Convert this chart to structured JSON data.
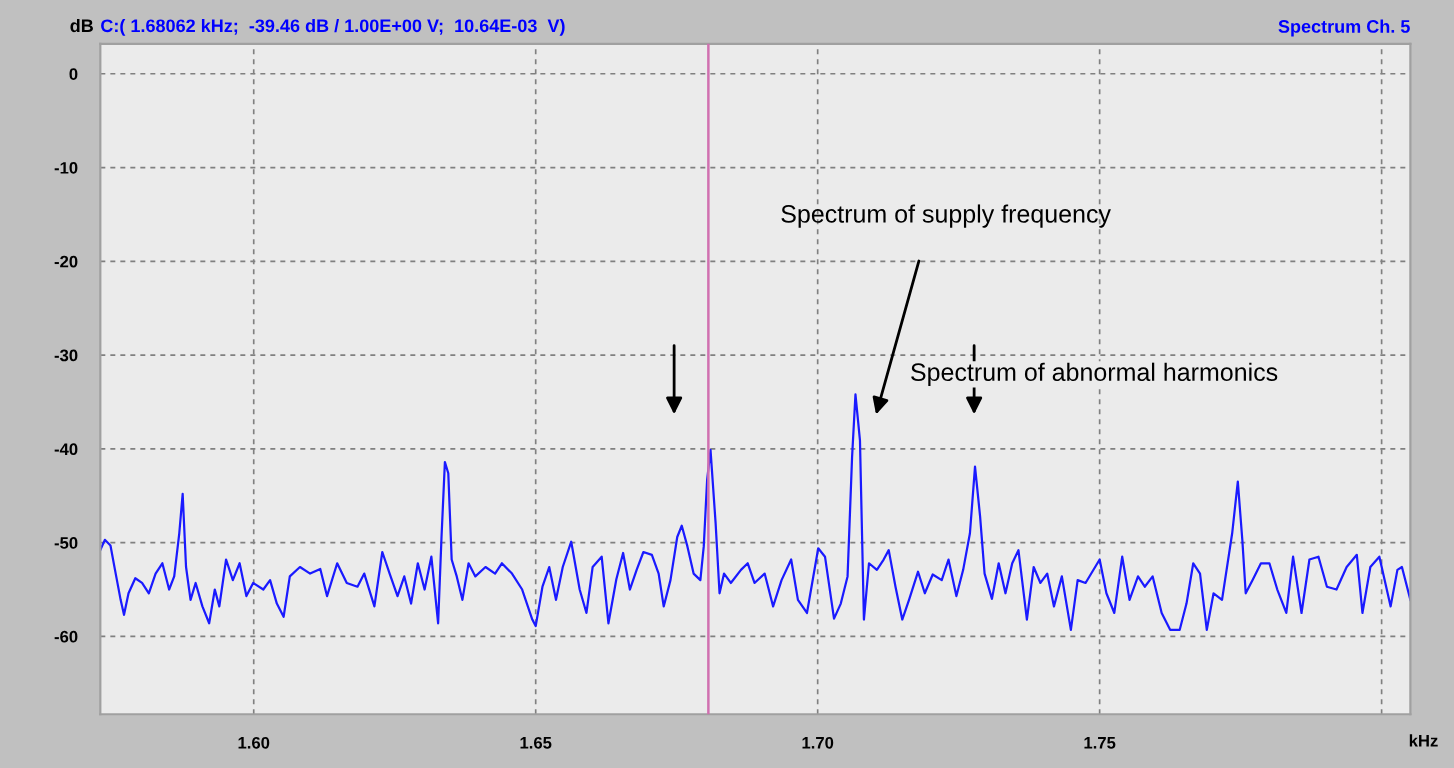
{
  "chart_data": {
    "type": "line",
    "title": "Spectrum Ch. 5",
    "xlabel": "kHz",
    "ylabel": "dB",
    "annotations": [
      "C:( 1.68062 kHz;  -39.46 dB / 1.00E+00 V;  10.64E-03  V)",
      "Spectrum of supply frequency",
      "Spectrum of abnormal harmonics"
    ],
    "xlim": [
      1.5728,
      1.8051
    ],
    "ylim": [
      -68.3,
      3.2
    ],
    "xticks": [
      {
        "value": 1.6,
        "label": "1.60"
      },
      {
        "value": 1.65,
        "label": "1.65"
      },
      {
        "value": 1.7,
        "label": "1.70"
      },
      {
        "value": 1.75,
        "label": "1.75"
      },
      {
        "value": 1.8,
        "label": null
      }
    ],
    "yticks": [
      0,
      -10,
      -20,
      -30,
      -40,
      -50,
      -60
    ],
    "grid": true,
    "legend": false,
    "marker": "none",
    "line_style": "solid",
    "ref_lines": [
      {
        "axis": "x",
        "value": 1.68062,
        "color": "#d070b0",
        "line_style": "solid"
      }
    ],
    "series": [
      {
        "color": "#1a1aff",
        "x": [
          1.5728,
          1.5736,
          1.5746,
          1.5754,
          1.5764,
          1.577,
          1.5778,
          1.579,
          1.5802,
          1.5814,
          1.5826,
          1.5838,
          1.585,
          1.5859,
          1.5868,
          1.5874,
          1.588,
          1.5888,
          1.5897,
          1.5909,
          1.5921,
          1.5931,
          1.5939,
          1.5951,
          1.5963,
          1.5975,
          1.5987,
          1.5999,
          1.6017,
          1.6029,
          1.6041,
          1.6053,
          1.6064,
          1.6082,
          1.61,
          1.6118,
          1.613,
          1.6148,
          1.6165,
          1.6184,
          1.6196,
          1.6214,
          1.6228,
          1.6241,
          1.6255,
          1.6267,
          1.6279,
          1.6291,
          1.6303,
          1.6315,
          1.6327,
          1.6333,
          1.6339,
          1.6345,
          1.6351,
          1.636,
          1.637,
          1.6381,
          1.6393,
          1.6411,
          1.6428,
          1.644,
          1.6458,
          1.6476,
          1.6494,
          1.65,
          1.6512,
          1.6524,
          1.6536,
          1.6548,
          1.6563,
          1.6578,
          1.659,
          1.6601,
          1.6617,
          1.6629,
          1.6643,
          1.6655,
          1.6667,
          1.6679,
          1.6691,
          1.6706,
          1.6718,
          1.6727,
          1.6739,
          1.6751,
          1.6759,
          1.6769,
          1.678,
          1.6792,
          1.6798,
          1.6804,
          1.681,
          1.6819,
          1.6826,
          1.6834,
          1.6846,
          1.6864,
          1.6876,
          1.6888,
          1.6906,
          1.6921,
          1.6936,
          1.6953,
          1.6965,
          1.6981,
          1.7001,
          1.7013,
          1.7029,
          1.7041,
          1.7053,
          1.7061,
          1.7067,
          1.7075,
          1.7082,
          1.7091,
          1.7105,
          1.7117,
          1.7126,
          1.7138,
          1.715,
          1.7162,
          1.7178,
          1.719,
          1.7204,
          1.722,
          1.7232,
          1.7246,
          1.7258,
          1.727,
          1.7279,
          1.7288,
          1.7296,
          1.7309,
          1.7321,
          1.7333,
          1.7345,
          1.7356,
          1.7371,
          1.7383,
          1.7395,
          1.7407,
          1.7419,
          1.7433,
          1.7449,
          1.7461,
          1.7475,
          1.75,
          1.7512,
          1.7526,
          1.754,
          1.7553,
          1.7568,
          1.758,
          1.7594,
          1.761,
          1.7625,
          1.7642,
          1.7654,
          1.7666,
          1.7678,
          1.769,
          1.7702,
          1.7717,
          1.7735,
          1.7745,
          1.7753,
          1.7759,
          1.7771,
          1.7786,
          1.7801,
          1.7815,
          1.7831,
          1.7843,
          1.7858,
          1.7872,
          1.7888,
          1.7903,
          1.792,
          1.7938,
          1.7956,
          1.7966,
          1.798,
          1.7996,
          1.8016,
          1.8028,
          1.8036,
          1.8051
        ],
        "values": [
          -50.8,
          -49.7,
          -50.3,
          -52.9,
          -56.1,
          -57.7,
          -55.4,
          -53.8,
          -54.3,
          -55.4,
          -53.3,
          -52.2,
          -55.0,
          -53.6,
          -49.0,
          -44.8,
          -52.6,
          -56.1,
          -54.3,
          -56.8,
          -58.6,
          -55.0,
          -56.8,
          -51.8,
          -54.0,
          -52.2,
          -55.7,
          -54.3,
          -55.0,
          -54.0,
          -56.5,
          -57.9,
          -53.6,
          -52.6,
          -53.3,
          -52.8,
          -55.7,
          -52.2,
          -54.3,
          -54.7,
          -53.3,
          -56.8,
          -51.0,
          -53.3,
          -55.7,
          -53.6,
          -56.5,
          -52.2,
          -55.0,
          -51.5,
          -58.6,
          -49.4,
          -41.4,
          -42.6,
          -51.8,
          -53.6,
          -56.1,
          -52.2,
          -53.6,
          -52.6,
          -53.3,
          -52.2,
          -53.3,
          -55.0,
          -58.2,
          -58.9,
          -54.7,
          -52.6,
          -56.1,
          -52.6,
          -49.9,
          -55.0,
          -57.5,
          -52.6,
          -51.5,
          -58.6,
          -53.9,
          -51.1,
          -55.0,
          -52.9,
          -51.0,
          -51.3,
          -53.3,
          -56.8,
          -54.0,
          -49.4,
          -48.2,
          -50.4,
          -53.3,
          -54.0,
          -50.4,
          -43.3,
          -40.1,
          -47.9,
          -55.4,
          -53.3,
          -54.3,
          -52.9,
          -52.2,
          -54.3,
          -53.3,
          -56.8,
          -54.0,
          -51.8,
          -56.1,
          -57.5,
          -50.6,
          -51.5,
          -58.1,
          -56.5,
          -53.6,
          -40.9,
          -34.2,
          -39.1,
          -58.2,
          -52.2,
          -52.9,
          -51.8,
          -50.8,
          -54.7,
          -58.2,
          -56.1,
          -53.1,
          -55.4,
          -53.4,
          -54.0,
          -51.8,
          -55.7,
          -52.9,
          -49.0,
          -41.9,
          -47.2,
          -53.3,
          -56.0,
          -52.2,
          -55.4,
          -52.2,
          -50.8,
          -58.2,
          -52.6,
          -54.3,
          -53.3,
          -56.8,
          -53.6,
          -59.3,
          -54.0,
          -54.3,
          -51.8,
          -55.4,
          -57.5,
          -51.5,
          -56.1,
          -53.6,
          -54.7,
          -53.6,
          -57.5,
          -59.3,
          -59.3,
          -56.5,
          -52.2,
          -53.3,
          -59.3,
          -55.4,
          -56.1,
          -49.0,
          -43.5,
          -49.7,
          -55.4,
          -54.0,
          -52.2,
          -52.2,
          -55.0,
          -57.5,
          -51.5,
          -57.5,
          -51.8,
          -51.5,
          -54.7,
          -55.0,
          -52.6,
          -51.3,
          -57.5,
          -52.6,
          -51.5,
          -56.8,
          -52.9,
          -52.6,
          -56.1
        ]
      }
    ]
  }
}
